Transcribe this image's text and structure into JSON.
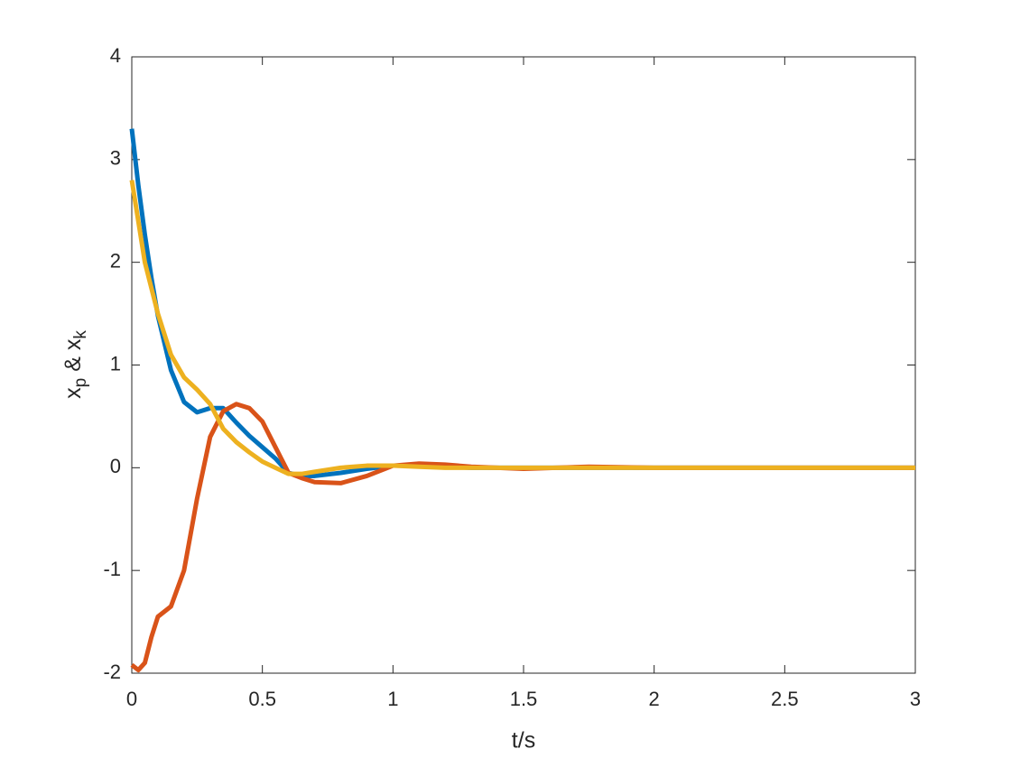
{
  "chart_data": {
    "type": "line",
    "xlabel": "t/s",
    "ylabel": [
      "x",
      "p",
      " & x",
      "k"
    ],
    "x": [
      0,
      0.025,
      0.05,
      0.075,
      0.1,
      0.15,
      0.2,
      0.25,
      0.3,
      0.35,
      0.4,
      0.45,
      0.5,
      0.55,
      0.6,
      0.65,
      0.7,
      0.8,
      0.9,
      1.0,
      1.1,
      1.2,
      1.3,
      1.5,
      1.75,
      2,
      2.5,
      3
    ],
    "series": [
      {
        "color": "#0072bd",
        "values": [
          3.3,
          2.75,
          2.27,
          1.85,
          1.48,
          0.95,
          0.64,
          0.54,
          0.58,
          0.58,
          0.44,
          0.31,
          0.2,
          0.09,
          -0.05,
          -0.08,
          -0.08,
          -0.05,
          -0.01,
          0.02,
          0.02,
          0.01,
          0,
          0,
          0,
          0,
          0,
          0
        ]
      },
      {
        "color": "#d95319",
        "values": [
          -1.92,
          -1.97,
          -1.9,
          -1.65,
          -1.45,
          -1.35,
          -1.0,
          -0.3,
          0.3,
          0.55,
          0.62,
          0.58,
          0.45,
          0.2,
          -0.05,
          -0.1,
          -0.14,
          -0.15,
          -0.08,
          0.02,
          0.04,
          0.03,
          0.01,
          -0.01,
          0.01,
          0,
          0,
          0
        ]
      },
      {
        "color": "#edb120",
        "values": [
          2.8,
          2.4,
          2.0,
          1.75,
          1.5,
          1.1,
          0.88,
          0.76,
          0.62,
          0.38,
          0.25,
          0.15,
          0.06,
          0.0,
          -0.06,
          -0.06,
          -0.04,
          0,
          0.02,
          0.02,
          0.01,
          0,
          0,
          0,
          0,
          0,
          0,
          0
        ]
      }
    ],
    "xlim": [
      0,
      3
    ],
    "xticks": [
      0,
      0.5,
      1,
      1.5,
      2,
      2.5,
      3
    ],
    "ylim": [
      -2,
      4
    ],
    "yticks": [
      -2,
      -1,
      0,
      1,
      2,
      3,
      4
    ]
  }
}
